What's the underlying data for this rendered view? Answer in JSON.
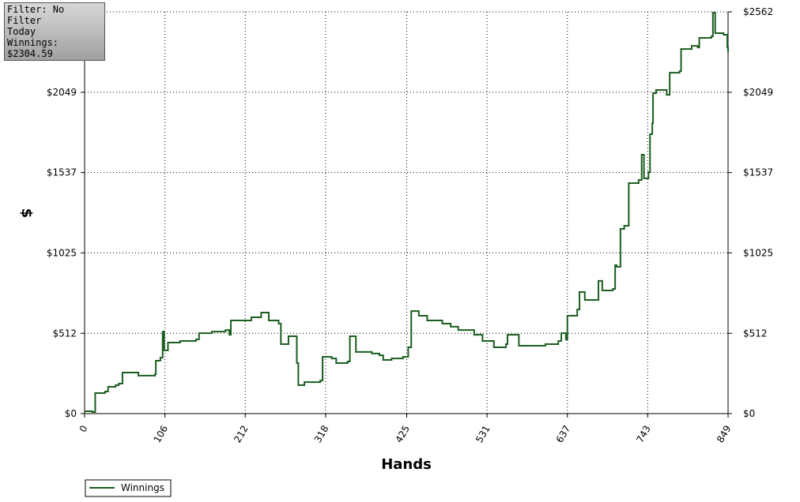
{
  "chart_data": {
    "type": "line",
    "x_label": "Hands",
    "y_label": "$",
    "info_box": [
      "Filter: No Filter",
      "Today",
      "Winnings: $2304.59"
    ],
    "xlim": [
      0,
      849
    ],
    "xticks": [
      0,
      106,
      212,
      318,
      425,
      531,
      637,
      743,
      849
    ],
    "ylim": [
      0,
      2562
    ],
    "yticks": [
      {
        "value": 0,
        "label": "$0"
      },
      {
        "value": 512,
        "label": "$512"
      },
      {
        "value": 1025,
        "label": "$1025"
      },
      {
        "value": 1537,
        "label": "$1537"
      },
      {
        "value": 2049,
        "label": "$2049"
      },
      {
        "value": 2562,
        "label": "$2562"
      }
    ],
    "grid": true,
    "step": true,
    "legend": "bottom-left",
    "x": [
      0,
      10,
      14,
      27,
      31,
      41,
      45,
      50,
      66,
      71,
      93,
      94,
      100,
      103,
      105,
      110,
      126,
      147,
      151,
      168,
      186,
      191,
      193,
      214,
      220,
      233,
      243,
      256,
      259,
      269,
      280,
      282,
      290,
      311,
      314,
      326,
      332,
      347,
      350,
      358,
      379,
      389,
      394,
      405,
      420,
      427,
      431,
      441,
      452,
      472,
      483,
      493,
      514,
      525,
      540,
      556,
      558,
      571,
      573,
      608,
      625,
      629,
      635,
      637,
      650,
      653,
      660,
      673,
      678,
      683,
      697,
      700,
      702,
      707,
      712,
      718,
      731,
      735,
      738,
      744,
      746,
      749,
      750,
      754,
      768,
      772,
      785,
      787,
      801,
      809,
      811,
      827,
      829,
      832,
      843,
      848,
      849
    ],
    "series": [
      {
        "name": "Winnings",
        "color": "#1b5e20",
        "values": [
          15,
          10,
          131,
          141,
          171,
          181,
          191,
          262,
          262,
          242,
          252,
          337,
          357,
          523,
          403,
          453,
          463,
          473,
          513,
          523,
          533,
          503,
          594,
          594,
          614,
          644,
          594,
          574,
          443,
          493,
          322,
          181,
          201,
          211,
          362,
          352,
          322,
          332,
          493,
          393,
          383,
          372,
          342,
          352,
          362,
          423,
          654,
          624,
          594,
          574,
          554,
          533,
          503,
          463,
          423,
          443,
          503,
          503,
          433,
          443,
          463,
          513,
          473,
          624,
          664,
          775,
          725,
          725,
          846,
          785,
          795,
          946,
          936,
          1178,
          1198,
          1470,
          1490,
          1651,
          1500,
          1540,
          1782,
          1852,
          2043,
          2064,
          2033,
          2174,
          2184,
          2325,
          2345,
          2335,
          2396,
          2406,
          2557,
          2426,
          2416,
          2335,
          2305
        ]
      }
    ]
  }
}
